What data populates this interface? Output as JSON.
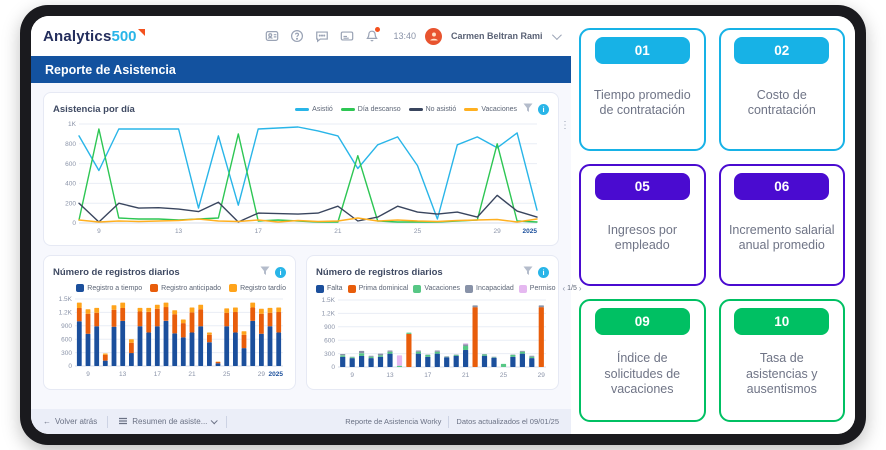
{
  "topbar": {
    "logo_text": "Analytics",
    "logo_number": "500",
    "time": "13:40",
    "user_name": "Carmen Beltran Ramire..."
  },
  "header": {
    "title": "Reporte de Asistencia"
  },
  "chart_data": [
    {
      "type": "line",
      "title": "Asistencia por día",
      "x": [
        8,
        9,
        10,
        11,
        12,
        13,
        14,
        15,
        16,
        17,
        18,
        19,
        20,
        21,
        22,
        23,
        24,
        25,
        26,
        27,
        28,
        29,
        30,
        31
      ],
      "series": [
        {
          "name": "Asistió",
          "color": "#29b5e8",
          "values": [
            880,
            530,
            950,
            950,
            950,
            950,
            150,
            880,
            180,
            950,
            960,
            970,
            930,
            880,
            550,
            790,
            870,
            580,
            40,
            790,
            870,
            760,
            910,
            130
          ]
        },
        {
          "name": "Día descanso",
          "color": "#2dc653",
          "values": [
            30,
            950,
            50,
            40,
            40,
            30,
            40,
            50,
            900,
            20,
            30,
            20,
            10,
            10,
            680,
            20,
            10,
            10,
            10,
            20,
            30,
            800,
            20,
            10
          ]
        },
        {
          "name": "No asistió",
          "color": "#39455e",
          "values": [
            200,
            10,
            200,
            150,
            155,
            140,
            115,
            210,
            10,
            100,
            95,
            90,
            100,
            170,
            20,
            60,
            170,
            110,
            90,
            110,
            60,
            280,
            120,
            60
          ]
        },
        {
          "name": "Vacaciones",
          "color": "#ffb020",
          "values": [
            30,
            10,
            20,
            15,
            20,
            25,
            40,
            20,
            15,
            30,
            10,
            25,
            15,
            20,
            50,
            20,
            30,
            20,
            15,
            25,
            30,
            35,
            10,
            40
          ]
        }
      ],
      "ylim": [
        0,
        1000
      ],
      "ytick_values": [
        0,
        200,
        400,
        600,
        800,
        1000
      ],
      "ytick_labels": [
        "0",
        "200",
        "400",
        "600",
        "800",
        "1K"
      ],
      "xtick_days": [
        9,
        13,
        17,
        21,
        25,
        29
      ],
      "x_end_label": "2025",
      "grid": true,
      "legend_position": "top-right"
    },
    {
      "type": "bar",
      "title": "Número de registros diarios",
      "x": [
        8,
        9,
        10,
        11,
        12,
        13,
        14,
        15,
        16,
        17,
        18,
        19,
        20,
        21,
        22,
        23,
        24,
        25,
        26,
        27,
        28,
        29,
        30,
        31
      ],
      "series": [
        {
          "name": "Registro a tiempo",
          "color": "#1b4f9c",
          "values": [
            1000,
            720,
            890,
            120,
            880,
            1010,
            290,
            890,
            750,
            890,
            1010,
            730,
            640,
            750,
            890,
            530,
            60,
            890,
            750,
            400,
            1010,
            720,
            890,
            750
          ]
        },
        {
          "name": "Registro anticipado",
          "color": "#e85d0b",
          "values": [
            300,
            450,
            300,
            130,
            380,
            290,
            230,
            330,
            460,
            390,
            310,
            430,
            320,
            450,
            380,
            170,
            30,
            300,
            460,
            300,
            300,
            450,
            300,
            460
          ]
        },
        {
          "name": "Registro tardío",
          "color": "#ffa41b",
          "values": [
            120,
            100,
            110,
            30,
            100,
            120,
            80,
            80,
            90,
            90,
            100,
            90,
            80,
            110,
            100,
            50,
            10,
            100,
            100,
            80,
            110,
            110,
            110,
            100
          ]
        }
      ],
      "ylim": [
        0,
        1500
      ],
      "ytick_values": [
        0,
        300,
        600,
        900,
        1200,
        1500
      ],
      "ytick_labels": [
        "0",
        "300",
        "600",
        "900",
        "1.2K",
        "1.5K"
      ],
      "xtick_days": [
        9,
        13,
        17,
        21,
        25,
        29
      ],
      "x_end_label": "2025",
      "grid": true,
      "legend_position": "top-right"
    },
    {
      "type": "bar",
      "title": "Número de registros diarios",
      "x": [
        8,
        9,
        10,
        11,
        12,
        13,
        14,
        15,
        16,
        17,
        18,
        19,
        20,
        21,
        22,
        23,
        24,
        25,
        26,
        27,
        28,
        29
      ],
      "series": [
        {
          "name": "Falta",
          "color": "#1b4f9c",
          "values": [
            230,
            200,
            250,
            200,
            230,
            300,
            0,
            0,
            300,
            230,
            300,
            220,
            250,
            380,
            0,
            250,
            210,
            0,
            230,
            300,
            200,
            0
          ]
        },
        {
          "name": "Prima dominical",
          "color": "#e85d0b",
          "values": [
            0,
            0,
            0,
            0,
            0,
            0,
            0,
            740,
            0,
            0,
            0,
            0,
            0,
            0,
            1340,
            0,
            0,
            0,
            0,
            0,
            0,
            1340
          ]
        },
        {
          "name": "Vacaciones",
          "color": "#57c785",
          "values": [
            30,
            20,
            60,
            30,
            30,
            40,
            30,
            30,
            40,
            40,
            40,
            10,
            20,
            90,
            0,
            30,
            10,
            70,
            40,
            40,
            30,
            0
          ]
        },
        {
          "name": "Incapacidad",
          "color": "#8892a8",
          "values": [
            30,
            10,
            50,
            20,
            40,
            30,
            0,
            0,
            30,
            10,
            30,
            10,
            10,
            40,
            40,
            10,
            10,
            0,
            10,
            20,
            20,
            40
          ]
        },
        {
          "name": "Permiso",
          "color": "#e5b8f0",
          "values": [
            0,
            0,
            0,
            0,
            0,
            0,
            230,
            0,
            0,
            0,
            0,
            0,
            0,
            20,
            0,
            0,
            0,
            0,
            0,
            0,
            0,
            0
          ]
        }
      ],
      "ylim": [
        0,
        1500
      ],
      "ytick_values": [
        0,
        300,
        600,
        900,
        1200,
        1500
      ],
      "ytick_labels": [
        "0",
        "300",
        "600",
        "900",
        "1.2K",
        "1.5K"
      ],
      "xtick_days": [
        9,
        13,
        17,
        21,
        25,
        29
      ],
      "pagination": "1/5",
      "grid": true,
      "legend_position": "top"
    }
  ],
  "kpi_cards": [
    {
      "number": "01",
      "label": "Tiempo promedio de contratación",
      "color": "#17b2e6"
    },
    {
      "number": "02",
      "label": "Costo de contratación",
      "color": "#17b2e6"
    },
    {
      "number": "05",
      "label": "Ingresos por empleado",
      "color": "#4a0bd0"
    },
    {
      "number": "06",
      "label": "Incremento salarial anual promedio",
      "color": "#4a0bd0"
    },
    {
      "number": "09",
      "label": "Índice de solicitudes de vacaciones",
      "color": "#00c063"
    },
    {
      "number": "10",
      "label": "Tasa de asistencias y ausentismos",
      "color": "#00c063"
    }
  ],
  "footer": {
    "back_label": "Volver atrás",
    "summary_label": "Resumen de asiste...",
    "right_primary": "Reporte de Asistencia Worky",
    "right_secondary": "Datos actualizados el 09/01/25"
  }
}
